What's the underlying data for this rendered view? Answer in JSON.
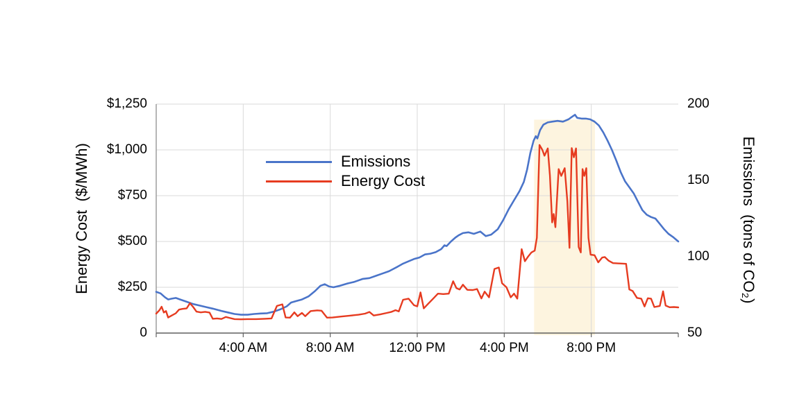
{
  "chart_data": {
    "type": "line",
    "title": "",
    "x_axis": {
      "unit": "time of day",
      "range_hours": [
        0,
        24
      ],
      "grid": true,
      "ticks": [
        {
          "hour": 4,
          "label": "4:00 AM"
        },
        {
          "hour": 8,
          "label": "8:00 AM"
        },
        {
          "hour": 12,
          "label": "12:00 PM"
        },
        {
          "hour": 16,
          "label": "4:00 PM"
        },
        {
          "hour": 20,
          "label": "8:00 PM"
        }
      ]
    },
    "left_axis": {
      "title": "Energy Cost  ($/MWh)",
      "range": [
        0,
        1250
      ],
      "grid": true,
      "ticks": [
        {
          "value": 1250,
          "label": "$1,250"
        },
        {
          "value": 1000,
          "label": "$1,000"
        },
        {
          "value": 750,
          "label": "$750"
        },
        {
          "value": 500,
          "label": "$500"
        },
        {
          "value": 250,
          "label": "$250"
        },
        {
          "value": 0,
          "label": "0"
        }
      ]
    },
    "right_axis": {
      "title": "Emissions  (tons of CO₂)",
      "range": [
        50,
        200
      ],
      "ticks": [
        {
          "value": 200,
          "label": "200"
        },
        {
          "value": 150,
          "label": "150"
        },
        {
          "value": 100,
          "label": "100"
        },
        {
          "value": 50,
          "label": "50"
        }
      ]
    },
    "legend": {
      "position": "inside-top-left",
      "items": [
        {
          "name": "Emissions",
          "color": "#4a74c9",
          "axis": "right"
        },
        {
          "name": "Energy Cost",
          "color": "#e63b20",
          "axis": "left"
        }
      ]
    },
    "highlight_band": {
      "start_hour": 17.37,
      "end_hour": 20.17,
      "top_value_cost": 1165,
      "color": "#fdf4df"
    },
    "colors": {
      "grid": "#dadada",
      "left_axis_line": "#8f8f8f",
      "bottom_axis_line": "#5f5f5f",
      "background": "#ffffff",
      "text": "#000000"
    },
    "series": [
      {
        "name": "Emissions",
        "axis": "right",
        "color": "#4a74c9",
        "stroke_width": 2.6,
        "points_hour_value": [
          [
            0,
            77
          ],
          [
            0.2,
            76
          ],
          [
            0.4,
            73.5
          ],
          [
            0.55,
            72
          ],
          [
            0.7,
            72.5
          ],
          [
            0.9,
            73
          ],
          [
            1.1,
            72
          ],
          [
            1.4,
            70.5
          ],
          [
            1.7,
            69
          ],
          [
            2,
            68
          ],
          [
            2.3,
            67
          ],
          [
            2.6,
            66
          ],
          [
            3,
            64.5
          ],
          [
            3.3,
            63.5
          ],
          [
            3.6,
            62.5
          ],
          [
            3.9,
            62
          ],
          [
            4.2,
            62
          ],
          [
            4.5,
            62.5
          ],
          [
            4.8,
            62.8
          ],
          [
            5.1,
            63
          ],
          [
            5.4,
            64
          ],
          [
            5.7,
            65.5
          ],
          [
            6,
            67.5
          ],
          [
            6.2,
            70
          ],
          [
            6.45,
            71
          ],
          [
            6.7,
            72
          ],
          [
            7,
            74
          ],
          [
            7.3,
            77.5
          ],
          [
            7.55,
            81
          ],
          [
            7.75,
            82
          ],
          [
            7.95,
            80.5
          ],
          [
            8.15,
            80
          ],
          [
            8.45,
            81
          ],
          [
            8.8,
            82.5
          ],
          [
            9.1,
            83.5
          ],
          [
            9.5,
            85.5
          ],
          [
            9.8,
            86
          ],
          [
            10.1,
            87.5
          ],
          [
            10.4,
            89
          ],
          [
            10.7,
            90.5
          ],
          [
            10.9,
            92
          ],
          [
            11.1,
            93.5
          ],
          [
            11.35,
            95.5
          ],
          [
            11.6,
            97
          ],
          [
            11.85,
            98.5
          ],
          [
            12.1,
            99.5
          ],
          [
            12.35,
            101.5
          ],
          [
            12.6,
            102
          ],
          [
            12.85,
            103
          ],
          [
            13.1,
            105
          ],
          [
            13.25,
            107.5
          ],
          [
            13.35,
            107
          ],
          [
            13.55,
            110
          ],
          [
            13.75,
            112.5
          ],
          [
            13.9,
            114
          ],
          [
            14.1,
            115.5
          ],
          [
            14.35,
            116
          ],
          [
            14.6,
            115
          ],
          [
            14.9,
            116.5
          ],
          [
            15.15,
            113.5
          ],
          [
            15.4,
            114.5
          ],
          [
            15.7,
            118
          ],
          [
            15.95,
            124
          ],
          [
            16.2,
            131
          ],
          [
            16.45,
            137
          ],
          [
            16.7,
            143
          ],
          [
            16.9,
            149
          ],
          [
            17.05,
            157
          ],
          [
            17.2,
            168
          ],
          [
            17.35,
            176
          ],
          [
            17.45,
            179
          ],
          [
            17.52,
            177.5
          ],
          [
            17.65,
            183
          ],
          [
            17.8,
            186.5
          ],
          [
            18,
            188
          ],
          [
            18.2,
            188.5
          ],
          [
            18.45,
            189
          ],
          [
            18.7,
            188.5
          ],
          [
            18.95,
            190
          ],
          [
            19.15,
            192
          ],
          [
            19.25,
            193
          ],
          [
            19.35,
            191
          ],
          [
            19.55,
            190.5
          ],
          [
            19.75,
            190.5
          ],
          [
            19.95,
            190
          ],
          [
            20.15,
            188.5
          ],
          [
            20.35,
            186
          ],
          [
            20.55,
            181.5
          ],
          [
            20.75,
            176
          ],
          [
            20.95,
            170
          ],
          [
            21.15,
            163
          ],
          [
            21.35,
            155.5
          ],
          [
            21.55,
            149.5
          ],
          [
            21.75,
            145.5
          ],
          [
            21.95,
            141.5
          ],
          [
            22.15,
            136
          ],
          [
            22.35,
            130.5
          ],
          [
            22.55,
            127.5
          ],
          [
            22.75,
            126
          ],
          [
            22.95,
            125
          ],
          [
            23.15,
            121.5
          ],
          [
            23.35,
            118
          ],
          [
            23.55,
            115
          ],
          [
            23.75,
            113
          ],
          [
            24,
            110
          ]
        ]
      },
      {
        "name": "Energy Cost",
        "axis": "left",
        "color": "#e63b20",
        "stroke_width": 2.4,
        "points_hour_value": [
          [
            0,
            106
          ],
          [
            0.15,
            125
          ],
          [
            0.25,
            144
          ],
          [
            0.35,
            112
          ],
          [
            0.45,
            120
          ],
          [
            0.55,
            85
          ],
          [
            0.7,
            95
          ],
          [
            0.9,
            108
          ],
          [
            1.05,
            128
          ],
          [
            1.2,
            132
          ],
          [
            1.4,
            135
          ],
          [
            1.55,
            163
          ],
          [
            1.7,
            142
          ],
          [
            1.85,
            117
          ],
          [
            2.05,
            113
          ],
          [
            2.25,
            116
          ],
          [
            2.45,
            112
          ],
          [
            2.6,
            78
          ],
          [
            2.8,
            80
          ],
          [
            3,
            77
          ],
          [
            3.2,
            88
          ],
          [
            3.4,
            82
          ],
          [
            3.6,
            76
          ],
          [
            3.9,
            75
          ],
          [
            4.2,
            76
          ],
          [
            4.6,
            76
          ],
          [
            5,
            78
          ],
          [
            5.3,
            80
          ],
          [
            5.55,
            148
          ],
          [
            5.8,
            157
          ],
          [
            5.95,
            85
          ],
          [
            6.15,
            84
          ],
          [
            6.35,
            113
          ],
          [
            6.5,
            92
          ],
          [
            6.7,
            110
          ],
          [
            6.85,
            92
          ],
          [
            7.1,
            120
          ],
          [
            7.4,
            124
          ],
          [
            7.6,
            122
          ],
          [
            7.85,
            84
          ],
          [
            8.1,
            85
          ],
          [
            8.5,
            90
          ],
          [
            8.9,
            95
          ],
          [
            9.3,
            100
          ],
          [
            9.6,
            106
          ],
          [
            9.8,
            115
          ],
          [
            10,
            96
          ],
          [
            10.3,
            102
          ],
          [
            10.6,
            110
          ],
          [
            10.8,
            115
          ],
          [
            11,
            125
          ],
          [
            11.15,
            118
          ],
          [
            11.35,
            182
          ],
          [
            11.6,
            188
          ],
          [
            11.85,
            152
          ],
          [
            12,
            146
          ],
          [
            12.15,
            222
          ],
          [
            12.3,
            135
          ],
          [
            12.5,
            160
          ],
          [
            12.75,
            190
          ],
          [
            12.95,
            215
          ],
          [
            13.2,
            213
          ],
          [
            13.45,
            215
          ],
          [
            13.65,
            283
          ],
          [
            13.8,
            245
          ],
          [
            13.95,
            238
          ],
          [
            14.1,
            264
          ],
          [
            14.3,
            236
          ],
          [
            14.55,
            235
          ],
          [
            14.75,
            240
          ],
          [
            14.95,
            189
          ],
          [
            15.1,
            226
          ],
          [
            15.3,
            195
          ],
          [
            15.55,
            350
          ],
          [
            15.75,
            358
          ],
          [
            15.9,
            272
          ],
          [
            16.1,
            250
          ],
          [
            16.3,
            195
          ],
          [
            16.45,
            215
          ],
          [
            16.6,
            188
          ],
          [
            16.8,
            458
          ],
          [
            16.95,
            392
          ],
          [
            17.1,
            418
          ],
          [
            17.25,
            440
          ],
          [
            17.4,
            450
          ],
          [
            17.5,
            520
          ],
          [
            17.62,
            1027
          ],
          [
            17.75,
            1000
          ],
          [
            17.85,
            968
          ],
          [
            18,
            1008
          ],
          [
            18.1,
            860
          ],
          [
            18.2,
            604
          ],
          [
            18.27,
            650
          ],
          [
            18.35,
            578
          ],
          [
            18.5,
            895
          ],
          [
            18.62,
            858
          ],
          [
            18.78,
            900
          ],
          [
            18.9,
            720
          ],
          [
            19,
            465
          ],
          [
            19.1,
            1010
          ],
          [
            19.2,
            960
          ],
          [
            19.3,
            1008
          ],
          [
            19.42,
            470
          ],
          [
            19.52,
            440
          ],
          [
            19.6,
            895
          ],
          [
            19.68,
            858
          ],
          [
            19.77,
            900
          ],
          [
            19.87,
            520
          ],
          [
            19.97,
            428
          ],
          [
            20.15,
            425
          ],
          [
            20.32,
            386
          ],
          [
            20.5,
            412
          ],
          [
            20.62,
            415
          ],
          [
            20.8,
            395
          ],
          [
            21,
            382
          ],
          [
            21.3,
            380
          ],
          [
            21.6,
            378
          ],
          [
            21.75,
            238
          ],
          [
            21.9,
            230
          ],
          [
            22.1,
            192
          ],
          [
            22.3,
            188
          ],
          [
            22.45,
            145
          ],
          [
            22.6,
            190
          ],
          [
            22.75,
            188
          ],
          [
            22.9,
            142
          ],
          [
            23.15,
            148
          ],
          [
            23.3,
            228
          ],
          [
            23.42,
            150
          ],
          [
            23.6,
            141
          ],
          [
            23.8,
            142
          ],
          [
            24,
            140
          ]
        ]
      }
    ]
  }
}
